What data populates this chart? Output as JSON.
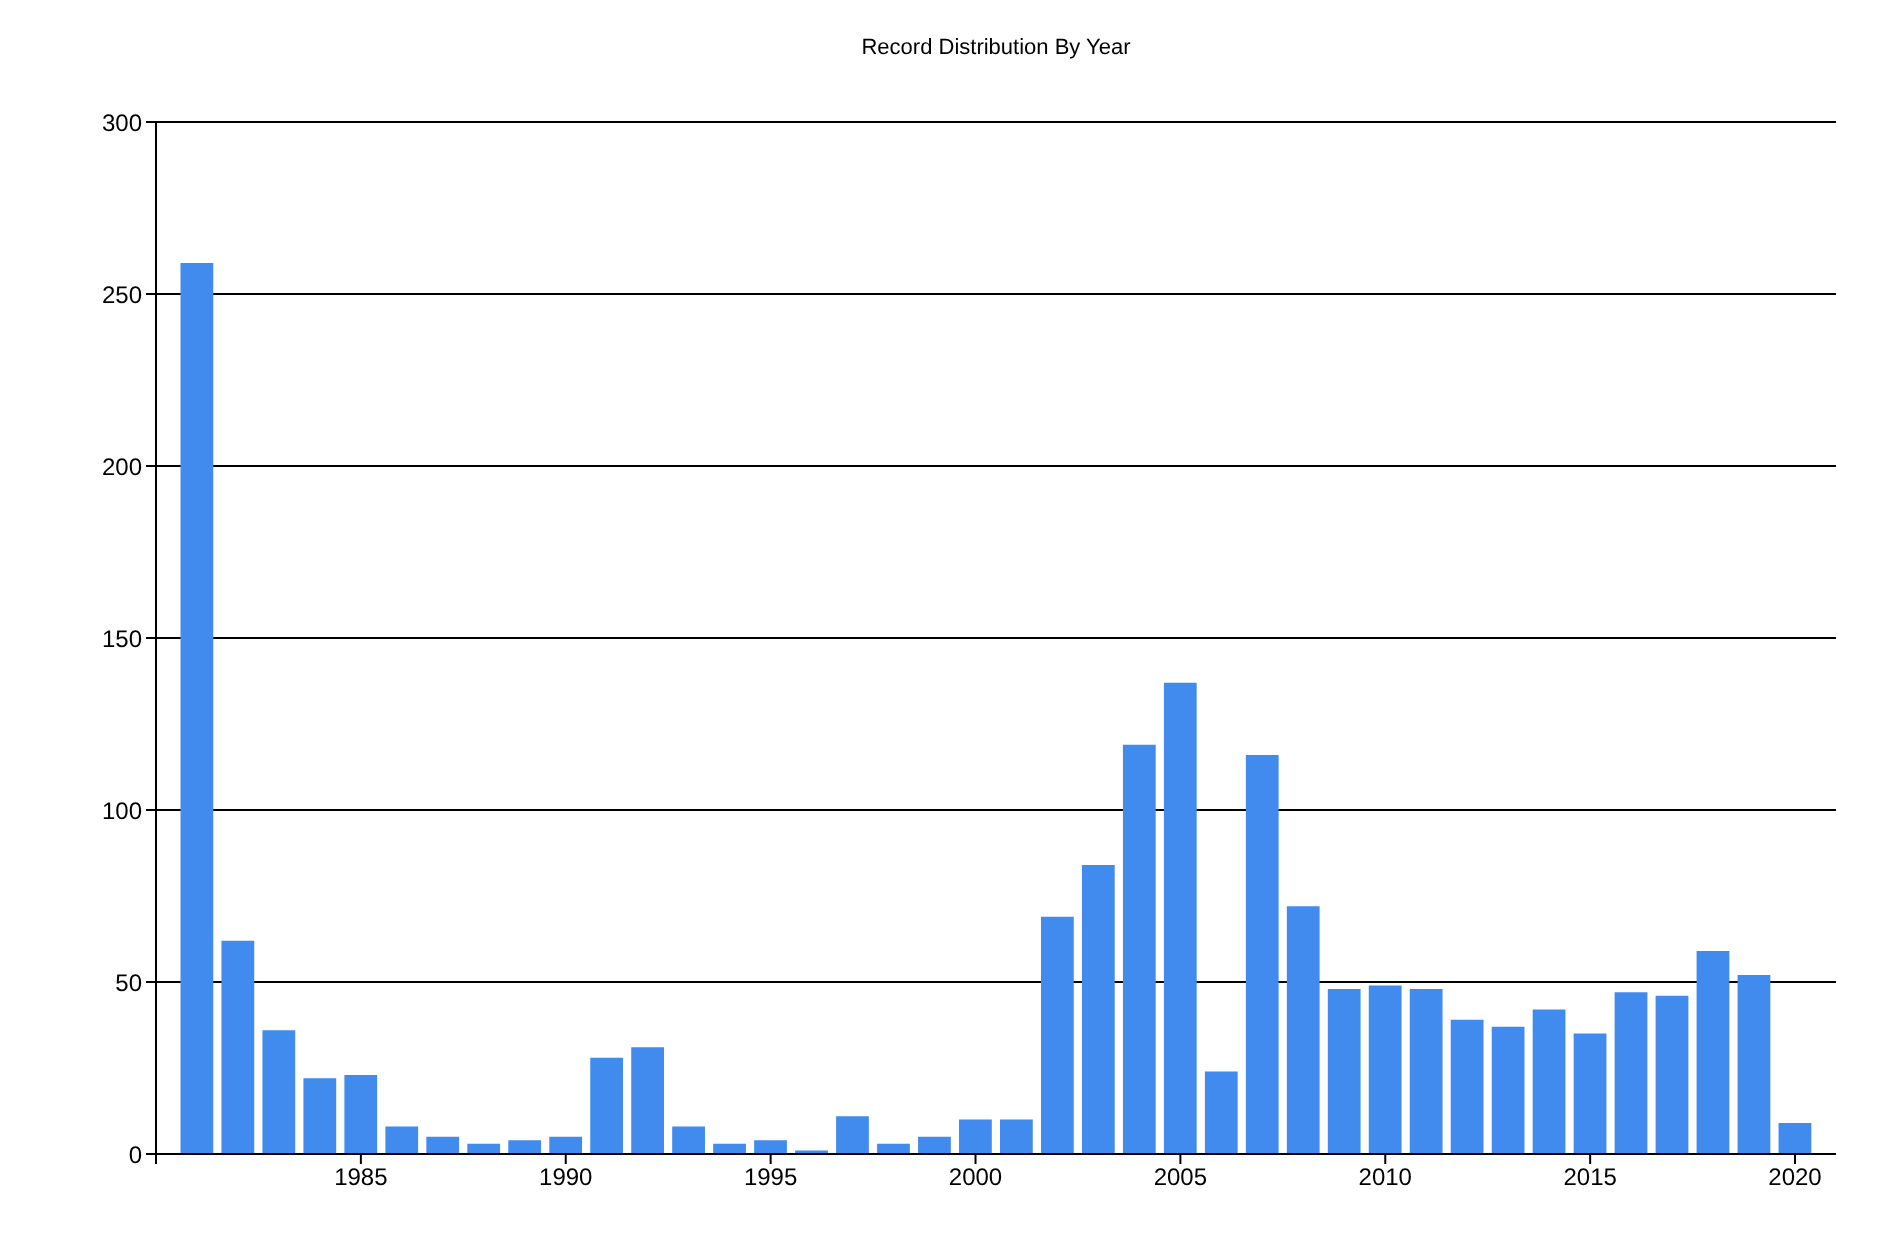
{
  "chart_data": {
    "type": "bar",
    "title": "Record Distribution By Year",
    "x": [
      1981,
      1982,
      1983,
      1984,
      1985,
      1986,
      1987,
      1988,
      1989,
      1990,
      1991,
      1992,
      1993,
      1994,
      1995,
      1996,
      1997,
      1998,
      1999,
      2000,
      2001,
      2002,
      2003,
      2004,
      2005,
      2006,
      2007,
      2008,
      2009,
      2010,
      2011,
      2012,
      2013,
      2014,
      2015,
      2016,
      2017,
      2018,
      2019,
      2020
    ],
    "values": [
      259,
      62,
      36,
      22,
      23,
      8,
      5,
      3,
      4,
      5,
      28,
      31,
      8,
      3,
      4,
      1,
      11,
      3,
      5,
      10,
      10,
      69,
      84,
      119,
      137,
      24,
      116,
      72,
      48,
      49,
      48,
      39,
      37,
      42,
      35,
      47,
      46,
      59,
      52,
      9
    ],
    "color": "#418bef",
    "xlim": [
      1980,
      2021
    ],
    "xticks": [
      {
        "value": 1980,
        "label": null
      },
      1985,
      1990,
      1995,
      2000,
      2005,
      2010,
      2015,
      2020
    ],
    "ylim": [
      0,
      300
    ],
    "yticks": [
      0,
      50,
      100,
      150,
      200,
      250,
      300
    ],
    "grid": "y"
  }
}
